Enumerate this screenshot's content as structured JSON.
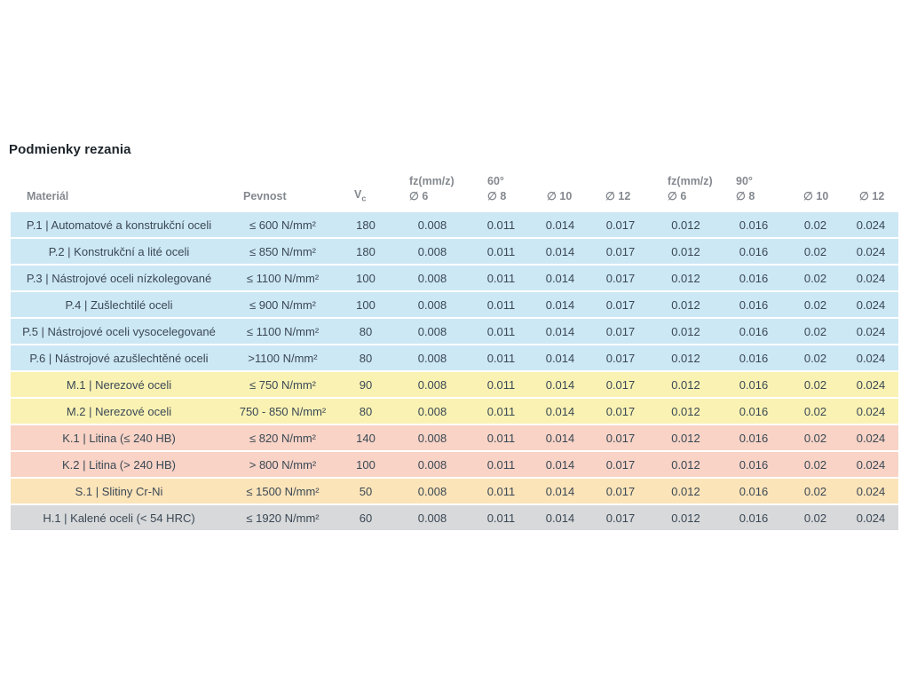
{
  "page": {
    "title": "Podmienky rezania"
  },
  "colors": {
    "row_blue": "#cde8f5",
    "row_yellow": "#faf2b3",
    "row_red": "#f8d3c6",
    "row_orange": "#fce4b9",
    "row_gray": "#d8d9db",
    "header_text": "#84898f",
    "body_text": "#3a4854",
    "title_text": "#1d242a",
    "background": "#ffffff"
  },
  "table": {
    "columns": [
      {
        "id": "material",
        "top": "",
        "label": "Materiál"
      },
      {
        "id": "pevnost",
        "top": "",
        "label": "Pevnost"
      },
      {
        "id": "vc",
        "top": "",
        "label": "V",
        "sub": "c"
      },
      {
        "id": "fz60-d6",
        "top": "fz(mm/z)",
        "label": "∅ 6"
      },
      {
        "id": "deg60-d8",
        "top": "60°",
        "label": "∅ 8"
      },
      {
        "id": "deg60-d10",
        "top": "",
        "label": "∅ 10"
      },
      {
        "id": "deg60-d12",
        "top": "",
        "label": "∅ 12"
      },
      {
        "id": "fz90-d6",
        "top": "fz(mm/z)",
        "label": "∅ 6"
      },
      {
        "id": "deg90-d8",
        "top": "90°",
        "label": "∅ 8"
      },
      {
        "id": "deg90-d10",
        "top": "",
        "label": "∅ 10"
      },
      {
        "id": "deg90-d12",
        "top": "",
        "label": "∅ 12"
      }
    ],
    "rows": [
      {
        "tone": "blue",
        "code": "P.1",
        "material": "P.1 | Automatové a konstrukční oceli",
        "pevnost": "≤ 600 N/mm²",
        "vc": "180",
        "values": [
          "0.008",
          "0.011",
          "0.014",
          "0.017",
          "0.012",
          "0.016",
          "0.02",
          "0.024"
        ]
      },
      {
        "tone": "blue",
        "code": "P.2",
        "material": "P.2 | Konstrukční a lité oceli",
        "pevnost": "≤ 850 N/mm²",
        "vc": "180",
        "values": [
          "0.008",
          "0.011",
          "0.014",
          "0.017",
          "0.012",
          "0.016",
          "0.02",
          "0.024"
        ]
      },
      {
        "tone": "blue",
        "code": "P.3",
        "material": "P.3 | Nástrojové oceli nízkolegované",
        "pevnost": "≤ 1100 N/mm²",
        "vc": "100",
        "values": [
          "0.008",
          "0.011",
          "0.014",
          "0.017",
          "0.012",
          "0.016",
          "0.02",
          "0.024"
        ]
      },
      {
        "tone": "blue",
        "code": "P.4",
        "material": "P.4 | Zušlechtilé oceli",
        "pevnost": "≤ 900 N/mm²",
        "vc": "100",
        "values": [
          "0.008",
          "0.011",
          "0.014",
          "0.017",
          "0.012",
          "0.016",
          "0.02",
          "0.024"
        ]
      },
      {
        "tone": "blue",
        "code": "P.5",
        "material": "P.5 | Nástrojové oceli vysocelegované",
        "pevnost": "≤ 1100 N/mm²",
        "vc": "80",
        "values": [
          "0.008",
          "0.011",
          "0.014",
          "0.017",
          "0.012",
          "0.016",
          "0.02",
          "0.024"
        ]
      },
      {
        "tone": "blue",
        "code": "P.6",
        "material": "P.6 | Nástrojové azušlechtěné oceli",
        "pevnost": ">1100 N/mm²",
        "vc": "80",
        "values": [
          "0.008",
          "0.011",
          "0.014",
          "0.017",
          "0.012",
          "0.016",
          "0.02",
          "0.024"
        ]
      },
      {
        "tone": "yellow",
        "code": "M.1",
        "material": "M.1 | Nerezové oceli",
        "pevnost": "≤ 750 N/mm²",
        "vc": "90",
        "values": [
          "0.008",
          "0.011",
          "0.014",
          "0.017",
          "0.012",
          "0.016",
          "0.02",
          "0.024"
        ]
      },
      {
        "tone": "yellow",
        "code": "M.2",
        "material": "M.2 | Nerezové oceli",
        "pevnost": "750 - 850 N/mm²",
        "vc": "80",
        "values": [
          "0.008",
          "0.011",
          "0.014",
          "0.017",
          "0.012",
          "0.016",
          "0.02",
          "0.024"
        ]
      },
      {
        "tone": "red",
        "code": "K.1",
        "material": "K.1 | Litina (≤ 240 HB)",
        "pevnost": "≤ 820 N/mm²",
        "vc": "140",
        "values": [
          "0.008",
          "0.011",
          "0.014",
          "0.017",
          "0.012",
          "0.016",
          "0.02",
          "0.024"
        ]
      },
      {
        "tone": "red",
        "code": "K.2",
        "material": "K.2 | Litina (> 240 HB)",
        "pevnost": "> 800 N/mm²",
        "vc": "100",
        "values": [
          "0.008",
          "0.011",
          "0.014",
          "0.017",
          "0.012",
          "0.016",
          "0.02",
          "0.024"
        ]
      },
      {
        "tone": "orange",
        "code": "S.1",
        "material": "S.1 | Slitiny Cr-Ni",
        "pevnost": "≤ 1500 N/mm²",
        "vc": "50",
        "values": [
          "0.008",
          "0.011",
          "0.014",
          "0.017",
          "0.012",
          "0.016",
          "0.02",
          "0.024"
        ]
      },
      {
        "tone": "gray",
        "code": "H.1",
        "material": "H.1 | Kalené oceli (< 54 HRC)",
        "pevnost": "≤ 1920 N/mm²",
        "vc": "60",
        "values": [
          "0.008",
          "0.011",
          "0.014",
          "0.017",
          "0.012",
          "0.016",
          "0.02",
          "0.024"
        ]
      }
    ]
  }
}
